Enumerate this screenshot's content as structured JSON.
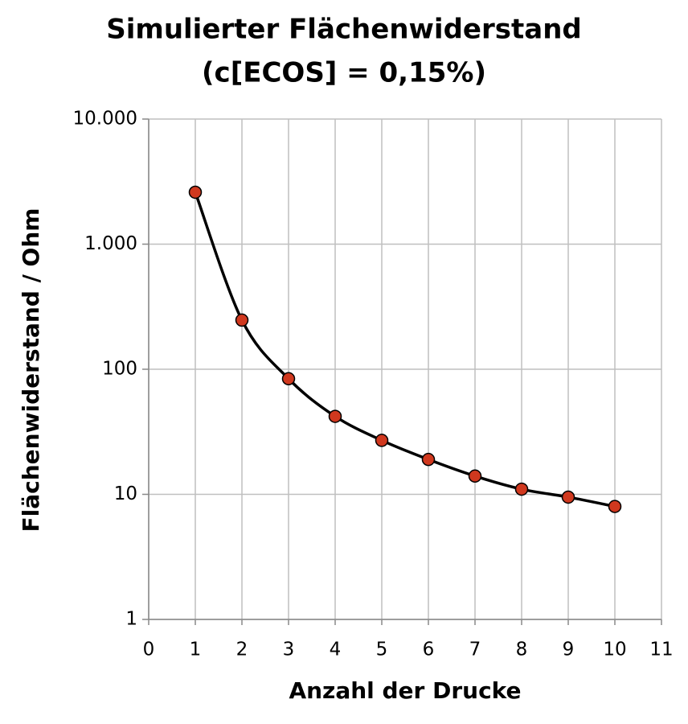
{
  "chart_data": {
    "type": "line",
    "title": [
      "Simulierter Flächenwiderstand",
      "(c[ECOS] = 0,15%)"
    ],
    "x_label": "Anzahl der Drucke",
    "y_label": "Flächenwiderstand  / Ohm",
    "x": [
      1,
      2,
      3,
      4,
      5,
      6,
      7,
      8,
      9,
      10
    ],
    "series": [
      {
        "color": "#000000",
        "marker_color": "#d0381e",
        "values": [
          2600,
          247,
          84,
          42,
          27,
          19,
          14,
          11,
          9.5,
          8
        ]
      }
    ],
    "xlim": [
      0,
      11
    ],
    "xticks": [
      0,
      1,
      2,
      3,
      4,
      5,
      6,
      7,
      8,
      9,
      10,
      11
    ],
    "ylim": [
      1,
      10000
    ],
    "y_log": true,
    "yticks": [
      1,
      10,
      100,
      {
        "value": 1000,
        "label": "1.000"
      },
      {
        "value": 10000,
        "label": "10.000"
      }
    ],
    "grid": true,
    "smooth": true
  }
}
